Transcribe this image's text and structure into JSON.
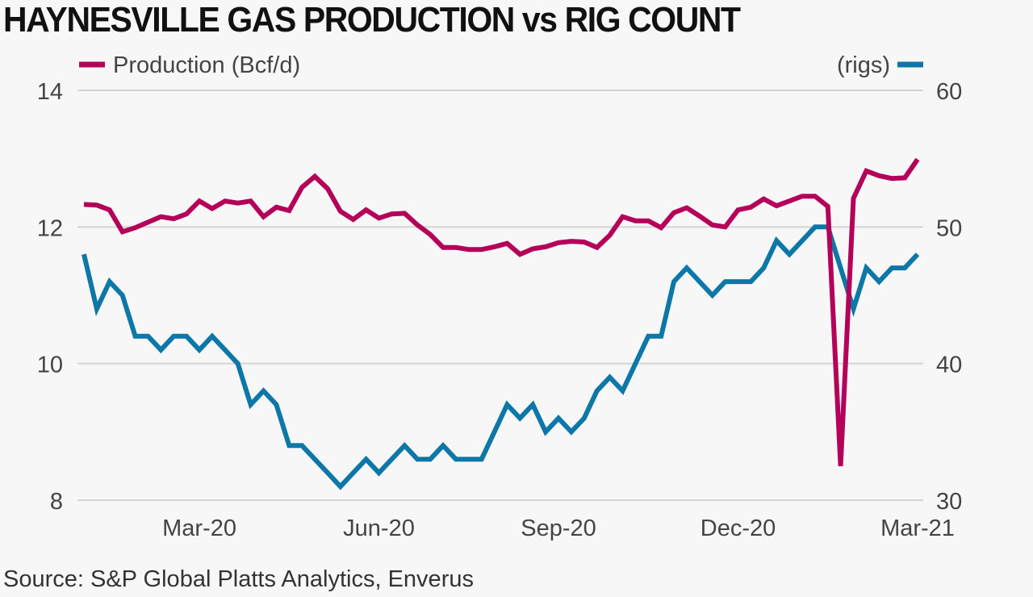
{
  "title": "HAYNESVILLE GAS PRODUCTION vs RIG COUNT",
  "source": "Source: S&P Global Platts Analytics, Enverus",
  "colors": {
    "production": "#b5005a",
    "rigs": "#0d78a8",
    "grid": "#d4d4d4",
    "background": "#f7f7f7"
  },
  "chart_data": {
    "type": "line",
    "title": "HAYNESVILLE GAS PRODUCTION vs RIG COUNT",
    "x_tick_labels": [
      "Mar-20",
      "Jun-20",
      "Sep-20",
      "Dec-20",
      "Mar-21"
    ],
    "x_tick_index": [
      9,
      23,
      37,
      51,
      65
    ],
    "y_left": {
      "label": "Production (Bcf/d)",
      "lim": [
        8,
        14
      ],
      "ticks": [
        "8",
        "10",
        "12",
        "14"
      ],
      "tick_values": [
        8,
        10,
        12,
        14
      ]
    },
    "y_right": {
      "label": "(rigs)",
      "lim": [
        30,
        60
      ],
      "ticks": [
        "30",
        "40",
        "50",
        "60"
      ],
      "tick_values": [
        30,
        40,
        50,
        60
      ]
    },
    "grid": true,
    "legend": {
      "production_label": "Production (Bcf/d)",
      "rigs_label": "(rigs)"
    },
    "series": [
      {
        "name": "Production (Bcf/d)",
        "axis": "left",
        "values": [
          12.33,
          12.32,
          12.25,
          11.93,
          11.99,
          12.07,
          12.15,
          12.12,
          12.19,
          12.38,
          12.27,
          12.38,
          12.35,
          12.38,
          12.15,
          12.29,
          12.24,
          12.58,
          12.74,
          12.56,
          12.23,
          12.11,
          12.25,
          12.13,
          12.19,
          12.2,
          12.03,
          11.89,
          11.7,
          11.7,
          11.67,
          11.67,
          11.71,
          11.76,
          11.6,
          11.68,
          11.71,
          11.77,
          11.79,
          11.78,
          11.7,
          11.88,
          12.15,
          12.09,
          12.09,
          11.99,
          12.21,
          12.28,
          12.16,
          12.03,
          12.0,
          12.25,
          12.29,
          12.41,
          12.31,
          12.38,
          12.45,
          12.45,
          12.3,
          8.5,
          12.42,
          12.82,
          12.75,
          12.71,
          12.72,
          12.99
        ]
      },
      {
        "name": "rigs",
        "axis": "right",
        "values": [
          48,
          44,
          46,
          45,
          42,
          42,
          41,
          42,
          42,
          41,
          42,
          41,
          40,
          37,
          38,
          37,
          34,
          34,
          33,
          32,
          31,
          32,
          33,
          32,
          33,
          34,
          33,
          33,
          34,
          33,
          33,
          33,
          35,
          37,
          36,
          37,
          35,
          36,
          35,
          36,
          38,
          39,
          38,
          40,
          42,
          42,
          46,
          47,
          46,
          45,
          46,
          46,
          46,
          47,
          49,
          48,
          49,
          50,
          50,
          47,
          44,
          47,
          46,
          47,
          47,
          48
        ]
      }
    ]
  }
}
